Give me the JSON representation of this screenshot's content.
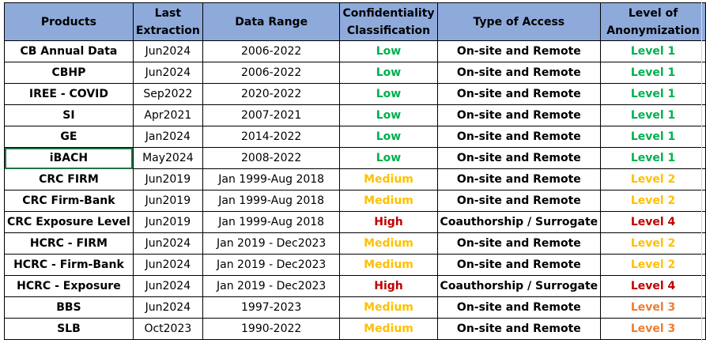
{
  "colors": {
    "header_bg": "#8eaadb",
    "low": "#00b050",
    "medium": "#ffc000",
    "high": "#c00000",
    "level_1": "#00b050",
    "level_2": "#ffc000",
    "level_3": "#ed7d31",
    "level_4": "#c00000",
    "selection": "#217346"
  },
  "table": {
    "headers": {
      "products": "Products",
      "last_extraction": "Last Extraction",
      "data_range": "Data Range",
      "confidentiality": "Confidentiality Classification",
      "type_of_access": "Type of Access",
      "anonymization": "Level of Anonymization"
    },
    "rows": [
      {
        "product": "CB Annual Data",
        "extraction": "Jun2024",
        "range": "2006-2022",
        "conf": "Low",
        "conf_color": "#00b050",
        "access": "On-site and Remote",
        "level": "Level 1",
        "level_color": "#00b050"
      },
      {
        "product": "CBHP",
        "extraction": "Jun2024",
        "range": "2006-2022",
        "conf": "Low",
        "conf_color": "#00b050",
        "access": "On-site and Remote",
        "level": "Level 1",
        "level_color": "#00b050"
      },
      {
        "product": "IREE - COVID",
        "extraction": "Sep2022",
        "range": "2020-2022",
        "conf": "Low",
        "conf_color": "#00b050",
        "access": "On-site and Remote",
        "level": "Level 1",
        "level_color": "#00b050"
      },
      {
        "product": "SI",
        "extraction": "Apr2021",
        "range": "2007-2021",
        "conf": "Low",
        "conf_color": "#00b050",
        "access": "On-site and Remote",
        "level": "Level 1",
        "level_color": "#00b050"
      },
      {
        "product": "GE",
        "extraction": "Jan2024",
        "range": "2014-2022",
        "conf": "Low",
        "conf_color": "#00b050",
        "access": "On-site and Remote",
        "level": "Level 1",
        "level_color": "#00b050"
      },
      {
        "product": "iBACH",
        "extraction": "May2024",
        "range": "2008-2022",
        "conf": "Low",
        "conf_color": "#00b050",
        "access": "On-site and Remote",
        "level": "Level 1",
        "level_color": "#00b050"
      },
      {
        "product": "CRC FIRM",
        "extraction": "Jun2019",
        "range": "Jan 1999-Aug 2018",
        "conf": "Medium",
        "conf_color": "#ffc000",
        "access": "On-site and Remote",
        "level": "Level 2",
        "level_color": "#ffc000"
      },
      {
        "product": "CRC Firm-Bank",
        "extraction": "Jun2019",
        "range": "Jan 1999-Aug 2018",
        "conf": "Medium",
        "conf_color": "#ffc000",
        "access": "On-site and Remote",
        "level": "Level 2",
        "level_color": "#ffc000"
      },
      {
        "product": "CRC Exposure Level",
        "extraction": "Jun2019",
        "range": "Jan 1999-Aug 2018",
        "conf": "High",
        "conf_color": "#c00000",
        "access": "Coauthorship / Surrogate",
        "level": "Level 4",
        "level_color": "#c00000"
      },
      {
        "product": "HCRC - FIRM",
        "extraction": "Jun2024",
        "range": "Jan 2019 - Dec2023",
        "conf": "Medium",
        "conf_color": "#ffc000",
        "access": "On-site and Remote",
        "level": "Level 2",
        "level_color": "#ffc000"
      },
      {
        "product": "HCRC - Firm-Bank",
        "extraction": "Jun2024",
        "range": "Jan 2019 - Dec2023",
        "conf": "Medium",
        "conf_color": "#ffc000",
        "access": "On-site and Remote",
        "level": "Level 2",
        "level_color": "#ffc000"
      },
      {
        "product": "HCRC - Exposure",
        "extraction": "Jun2024",
        "range": "Jan 2019 - Dec2023",
        "conf": "High",
        "conf_color": "#c00000",
        "access": "Coauthorship / Surrogate",
        "level": "Level 4",
        "level_color": "#c00000"
      },
      {
        "product": "BBS",
        "extraction": "Jun2024",
        "range": "1997-2023",
        "conf": "Medium",
        "conf_color": "#ffc000",
        "access": "On-site and Remote",
        "level": "Level 3",
        "level_color": "#ed7d31"
      },
      {
        "product": "SLB",
        "extraction": "Oct2023",
        "range": "1990-2022",
        "conf": "Medium",
        "conf_color": "#ffc000",
        "access": "On-site and Remote",
        "level": "Level 3",
        "level_color": "#ed7d31"
      }
    ]
  }
}
